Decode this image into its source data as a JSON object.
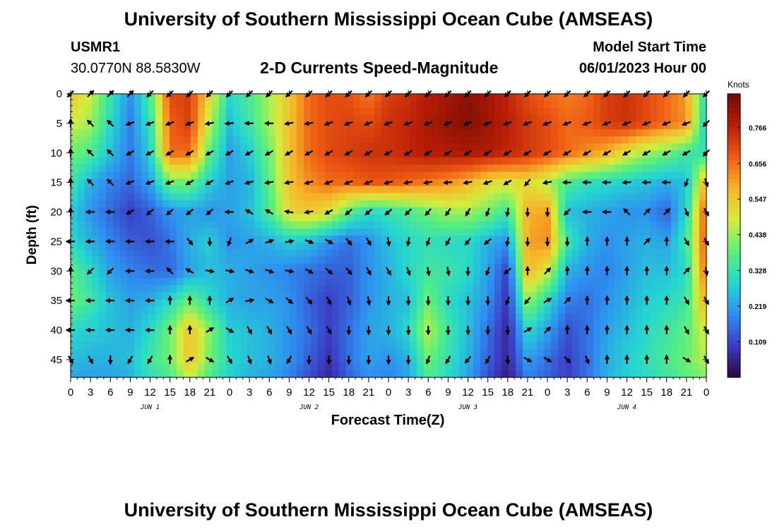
{
  "header": {
    "title": "University of Southern Mississippi Ocean Cube (AMSEAS)",
    "station_id": "USMR1",
    "coordinates": "30.0770N  88.5830W",
    "subtitle": "2-D Currents Speed-Magnitude",
    "model_start_label": "Model Start Time",
    "model_start_value": "06/01/2023 Hour 00"
  },
  "footer": {
    "title": "University of Southern Mississippi Ocean Cube (AMSEAS)"
  },
  "chart_data": {
    "type": "heatmap",
    "title": "2-D Currents Speed-Magnitude",
    "xlabel": "Forecast Time(Z)",
    "ylabel": "Depth (ft)",
    "x_range_hours": [
      0,
      96
    ],
    "ylim": [
      0,
      48
    ],
    "y_inverted": true,
    "x_tick_labels": [
      "0",
      "3",
      "6",
      "9",
      "12",
      "15",
      "18",
      "21",
      "0",
      "3",
      "6",
      "9",
      "12",
      "15",
      "18",
      "21",
      "0",
      "3",
      "6",
      "9",
      "12",
      "15",
      "18",
      "21",
      "0",
      "3",
      "6",
      "9",
      "12",
      "15",
      "18",
      "21",
      "0"
    ],
    "y_ticks": [
      0,
      5,
      10,
      15,
      20,
      25,
      30,
      35,
      40,
      45
    ],
    "day_labels": [
      {
        "hour": 12,
        "label": "JUN 1"
      },
      {
        "hour": 36,
        "label": "JUN 2"
      },
      {
        "hour": 60,
        "label": "JUN 3"
      },
      {
        "hour": 84,
        "label": "JUN 4"
      }
    ],
    "colorbar": {
      "units": "Knots",
      "min": 0.0,
      "max": 0.87,
      "tick_values": [
        0.766,
        0.656,
        0.547,
        0.438,
        0.328,
        0.219,
        0.109
      ],
      "tick_labels": [
        "0.766",
        "0.656",
        "0.547",
        "0.438",
        "0.328",
        "0.219",
        "0.109"
      ],
      "colormap": [
        "#2a0a3c",
        "#3b3bc4",
        "#2f8ef0",
        "#25d6d0",
        "#5cf07a",
        "#d6ec3c",
        "#f7b52a",
        "#ee5a14",
        "#b81d06",
        "#6e0a04"
      ]
    },
    "speed_grid": {
      "depths_ft": [
        0,
        5,
        10,
        15,
        20,
        25,
        30,
        35,
        40,
        45,
        48
      ],
      "hours": [
        0,
        3,
        6,
        9,
        12,
        15,
        18,
        21,
        24,
        27,
        30,
        33,
        36,
        39,
        42,
        45,
        48,
        51,
        54,
        57,
        60,
        63,
        66,
        69,
        72,
        75,
        78,
        81,
        84,
        87,
        90,
        93,
        96
      ],
      "values": [
        [
          0.55,
          0.48,
          0.33,
          0.2,
          0.36,
          0.7,
          0.72,
          0.52,
          0.3,
          0.36,
          0.45,
          0.55,
          0.66,
          0.7,
          0.69,
          0.64,
          0.72,
          0.74,
          0.78,
          0.8,
          0.83,
          0.8,
          0.76,
          0.7,
          0.66,
          0.64,
          0.66,
          0.72,
          0.74,
          0.7,
          0.66,
          0.6,
          0.3
        ],
        [
          0.48,
          0.44,
          0.3,
          0.18,
          0.32,
          0.67,
          0.72,
          0.46,
          0.26,
          0.34,
          0.44,
          0.56,
          0.66,
          0.7,
          0.71,
          0.7,
          0.74,
          0.76,
          0.79,
          0.82,
          0.84,
          0.81,
          0.77,
          0.73,
          0.7,
          0.66,
          0.68,
          0.72,
          0.74,
          0.7,
          0.66,
          0.62,
          0.26
        ],
        [
          0.4,
          0.36,
          0.26,
          0.17,
          0.28,
          0.66,
          0.66,
          0.38,
          0.22,
          0.28,
          0.4,
          0.56,
          0.66,
          0.7,
          0.72,
          0.74,
          0.74,
          0.76,
          0.78,
          0.78,
          0.79,
          0.78,
          0.76,
          0.73,
          0.7,
          0.66,
          0.62,
          0.58,
          0.5,
          0.44,
          0.4,
          0.34,
          0.32
        ],
        [
          0.34,
          0.24,
          0.18,
          0.15,
          0.22,
          0.4,
          0.4,
          0.28,
          0.22,
          0.24,
          0.38,
          0.56,
          0.62,
          0.66,
          0.66,
          0.68,
          0.68,
          0.66,
          0.64,
          0.62,
          0.58,
          0.52,
          0.5,
          0.52,
          0.46,
          0.36,
          0.32,
          0.3,
          0.28,
          0.26,
          0.24,
          0.26,
          0.6
        ],
        [
          0.28,
          0.2,
          0.15,
          0.1,
          0.14,
          0.2,
          0.22,
          0.2,
          0.22,
          0.26,
          0.36,
          0.52,
          0.55,
          0.5,
          0.38,
          0.3,
          0.32,
          0.36,
          0.4,
          0.44,
          0.44,
          0.4,
          0.34,
          0.58,
          0.6,
          0.26,
          0.24,
          0.22,
          0.2,
          0.2,
          0.14,
          0.3,
          0.7
        ],
        [
          0.3,
          0.24,
          0.18,
          0.14,
          0.12,
          0.16,
          0.24,
          0.28,
          0.2,
          0.22,
          0.24,
          0.28,
          0.26,
          0.2,
          0.16,
          0.2,
          0.26,
          0.3,
          0.32,
          0.3,
          0.3,
          0.24,
          0.2,
          0.6,
          0.62,
          0.34,
          0.24,
          0.2,
          0.22,
          0.24,
          0.22,
          0.34,
          0.7
        ],
        [
          0.38,
          0.3,
          0.22,
          0.18,
          0.16,
          0.15,
          0.22,
          0.26,
          0.24,
          0.22,
          0.2,
          0.18,
          0.16,
          0.14,
          0.14,
          0.2,
          0.24,
          0.3,
          0.34,
          0.34,
          0.3,
          0.22,
          0.1,
          0.58,
          0.48,
          0.24,
          0.2,
          0.18,
          0.22,
          0.26,
          0.26,
          0.3,
          0.68
        ],
        [
          0.4,
          0.34,
          0.26,
          0.22,
          0.24,
          0.3,
          0.4,
          0.3,
          0.24,
          0.22,
          0.22,
          0.2,
          0.14,
          0.1,
          0.14,
          0.2,
          0.24,
          0.26,
          0.4,
          0.3,
          0.26,
          0.2,
          0.08,
          0.44,
          0.3,
          0.18,
          0.16,
          0.2,
          0.24,
          0.28,
          0.3,
          0.34,
          0.6
        ],
        [
          0.3,
          0.28,
          0.26,
          0.24,
          0.3,
          0.4,
          0.56,
          0.42,
          0.28,
          0.26,
          0.24,
          0.2,
          0.16,
          0.1,
          0.16,
          0.22,
          0.24,
          0.3,
          0.46,
          0.34,
          0.26,
          0.16,
          0.06,
          0.3,
          0.22,
          0.12,
          0.16,
          0.22,
          0.26,
          0.3,
          0.34,
          0.38,
          0.5
        ],
        [
          0.26,
          0.24,
          0.24,
          0.26,
          0.34,
          0.4,
          0.56,
          0.4,
          0.3,
          0.26,
          0.24,
          0.2,
          0.14,
          0.08,
          0.16,
          0.22,
          0.2,
          0.24,
          0.4,
          0.32,
          0.24,
          0.14,
          0.06,
          0.22,
          0.16,
          0.1,
          0.16,
          0.24,
          0.28,
          0.32,
          0.36,
          0.4,
          0.46
        ],
        [
          0.22,
          0.22,
          0.22,
          0.24,
          0.32,
          0.36,
          0.48,
          0.36,
          0.28,
          0.24,
          0.22,
          0.18,
          0.12,
          0.06,
          0.14,
          0.2,
          0.18,
          0.22,
          0.36,
          0.3,
          0.22,
          0.12,
          0.04,
          0.18,
          0.14,
          0.1,
          0.16,
          0.24,
          0.28,
          0.3,
          0.34,
          0.38,
          0.42
        ]
      ]
    },
    "arrows": {
      "depths_ft": [
        0,
        5,
        10,
        15,
        20,
        25,
        30,
        35,
        40,
        45
      ],
      "hours": [
        0,
        3,
        6,
        9,
        12,
        15,
        18,
        21,
        24,
        27,
        30,
        33,
        36,
        39,
        42,
        45,
        48,
        51,
        54,
        57,
        60,
        63,
        66,
        69,
        72,
        75,
        78,
        81,
        84,
        87,
        90,
        93,
        96
      ],
      "direction_deg": [
        [
          225,
          45,
          45,
          45,
          225,
          225,
          225,
          225,
          225,
          225,
          225,
          225,
          225,
          225,
          225,
          225,
          225,
          225,
          225,
          225,
          225,
          225,
          225,
          225,
          225,
          225,
          225,
          225,
          225,
          225,
          225,
          225,
          225
        ],
        [
          0,
          315,
          315,
          250,
          250,
          250,
          250,
          260,
          265,
          270,
          270,
          260,
          260,
          250,
          250,
          250,
          250,
          250,
          250,
          250,
          250,
          250,
          250,
          250,
          250,
          250,
          250,
          250,
          250,
          250,
          250,
          250,
          225
        ],
        [
          0,
          315,
          315,
          240,
          240,
          240,
          240,
          240,
          240,
          240,
          240,
          240,
          240,
          240,
          240,
          240,
          240,
          240,
          240,
          240,
          240,
          240,
          240,
          240,
          240,
          240,
          240,
          240,
          240,
          240,
          240,
          240,
          225
        ],
        [
          0,
          315,
          315,
          250,
          250,
          250,
          240,
          240,
          250,
          255,
          260,
          260,
          255,
          250,
          250,
          250,
          255,
          260,
          260,
          265,
          260,
          250,
          240,
          220,
          260,
          270,
          270,
          270,
          265,
          270,
          270,
          200,
          160
        ],
        [
          0,
          270,
          270,
          240,
          230,
          230,
          230,
          230,
          270,
          300,
          300,
          280,
          260,
          240,
          230,
          230,
          230,
          225,
          220,
          215,
          210,
          200,
          190,
          180,
          180,
          225,
          270,
          270,
          315,
          45,
          45,
          160,
          150
        ],
        [
          270,
          270,
          270,
          270,
          270,
          270,
          140,
          180,
          200,
          60,
          70,
          80,
          110,
          120,
          140,
          150,
          170,
          190,
          200,
          210,
          220,
          230,
          190,
          180,
          180,
          180,
          0,
          0,
          0,
          45,
          0,
          150,
          150
        ],
        [
          0,
          225,
          225,
          270,
          270,
          315,
          300,
          100,
          100,
          110,
          110,
          100,
          120,
          130,
          140,
          150,
          150,
          160,
          170,
          170,
          180,
          200,
          230,
          0,
          45,
          0,
          0,
          0,
          0,
          0,
          0,
          45,
          170
        ],
        [
          270,
          270,
          270,
          270,
          270,
          0,
          0,
          0,
          60,
          80,
          120,
          130,
          140,
          150,
          160,
          170,
          180,
          180,
          180,
          180,
          180,
          180,
          200,
          220,
          60,
          45,
          0,
          0,
          0,
          0,
          0,
          150,
          150
        ],
        [
          270,
          270,
          270,
          270,
          270,
          0,
          0,
          60,
          120,
          150,
          150,
          150,
          150,
          150,
          180,
          180,
          180,
          180,
          180,
          180,
          180,
          180,
          180,
          60,
          45,
          0,
          0,
          0,
          0,
          0,
          0,
          150,
          150
        ],
        [
          150,
          150,
          180,
          210,
          210,
          0,
          60,
          120,
          150,
          160,
          160,
          210,
          180,
          180,
          180,
          180,
          180,
          180,
          200,
          210,
          220,
          210,
          180,
          120,
          120,
          135,
          160,
          0,
          0,
          0,
          0,
          120,
          150
        ]
      ]
    }
  }
}
